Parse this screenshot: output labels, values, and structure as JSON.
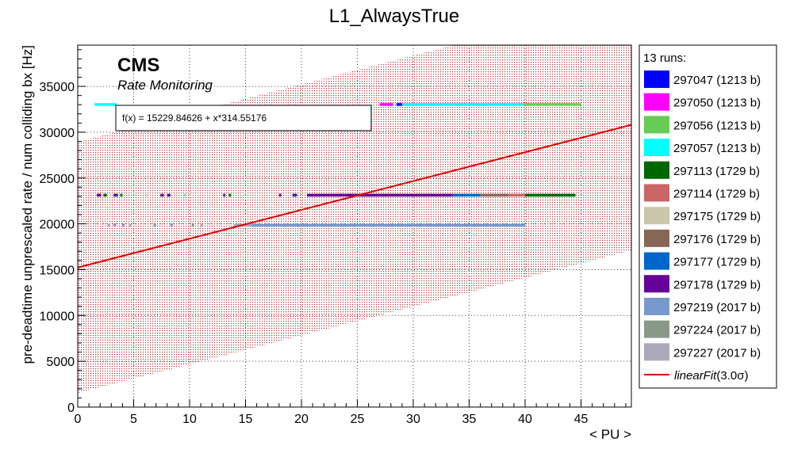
{
  "chart_data": {
    "type": "scatter",
    "title": "L1_AlwaysTrue",
    "xlabel": "< PU >",
    "ylabel": "pre-deadtime unprescaled rate / num colliding bx [Hz]",
    "xlim": [
      0,
      49.5
    ],
    "ylim": [
      0,
      39500
    ],
    "x_ticks": [
      0,
      5,
      10,
      15,
      20,
      25,
      30,
      35,
      40,
      45
    ],
    "y_ticks": [
      0,
      5000,
      10000,
      15000,
      20000,
      25000,
      30000,
      35000
    ],
    "grid": true,
    "watermark": {
      "experiment": "CMS",
      "subtitle": "Rate Monitoring"
    },
    "fit": {
      "label": "linearFit",
      "sigma_label": "(3.0σ)",
      "function_text": "f(x) = 15229.84626 + x*314.55176",
      "intercept": 15229.84626,
      "slope": 314.55176,
      "band_sigma": 3.0,
      "band_halfwidth": 13700,
      "color": "#dd0000"
    },
    "legend": {
      "header": "13 runs:",
      "placement": "right"
    },
    "series": [
      {
        "name": "297047 (1213 b)",
        "color": "#0000ff",
        "y": 33000,
        "segments": [
          [
            28.5,
            29.0
          ]
        ]
      },
      {
        "name": "297050 (1213 b)",
        "color": "#ff00ff",
        "y": 33000,
        "segments": [
          [
            27.0,
            28.2
          ]
        ]
      },
      {
        "name": "297056 (1213 b)",
        "color": "#66cc55",
        "y": 33000,
        "segments": [
          [
            39.8,
            45.0
          ]
        ]
      },
      {
        "name": "297057 (1213 b)",
        "color": "#00ffff",
        "y": 33000,
        "segments": [
          [
            1.5,
            3.5
          ],
          [
            29.0,
            39.8
          ]
        ]
      },
      {
        "name": "297113 (1729 b)",
        "color": "#006600",
        "y": 23100,
        "segments": [
          [
            2.3,
            2.6
          ],
          [
            3.8,
            4.0
          ],
          [
            13.5,
            13.7
          ],
          [
            40.0,
            44.5
          ]
        ]
      },
      {
        "name": "297114 (1729 b)",
        "color": "#cc6666",
        "y": 23100,
        "segments": [
          [
            38.5,
            40.0
          ]
        ]
      },
      {
        "name": "297175 (1729 b)",
        "color": "#ccc6aa",
        "y": 23100,
        "segments": [
          [
            6.0,
            6.2
          ],
          [
            9.5,
            9.7
          ],
          [
            24.0,
            28.0
          ]
        ]
      },
      {
        "name": "297176 (1729 b)",
        "color": "#886655",
        "y": 23100,
        "segments": [
          [
            36.0,
            38.5
          ]
        ]
      },
      {
        "name": "297177 (1729 b)",
        "color": "#0066cc",
        "y": 23100,
        "segments": [
          [
            33.5,
            36.0
          ]
        ]
      },
      {
        "name": "297178 (1729 b)",
        "color": "#660099",
        "y": 23100,
        "segments": [
          [
            1.7,
            2.1
          ],
          [
            3.2,
            3.6
          ],
          [
            7.4,
            7.7
          ],
          [
            8.0,
            8.3
          ],
          [
            13.0,
            13.2
          ],
          [
            18.0,
            18.2
          ],
          [
            19.2,
            19.6
          ],
          [
            20.5,
            33.5
          ]
        ]
      },
      {
        "name": "297219 (2017 b)",
        "color": "#7799cc",
        "y": 19800,
        "segments": [
          [
            3.2,
            3.4
          ],
          [
            4.0,
            4.2
          ],
          [
            6.8,
            7.0
          ],
          [
            8.3,
            8.5
          ],
          [
            15.5,
            40.0
          ]
        ]
      },
      {
        "name": "297224 (2017 b)",
        "color": "#889988",
        "y": 19800,
        "segments": [
          [
            10.2,
            10.4
          ]
        ]
      },
      {
        "name": "297227 (2017 b)",
        "color": "#aaaabb",
        "y": 19800,
        "segments": [
          [
            2.7,
            2.9
          ],
          [
            4.6,
            4.8
          ],
          [
            11.0,
            11.2
          ],
          [
            14.0,
            15.5
          ]
        ]
      }
    ]
  }
}
